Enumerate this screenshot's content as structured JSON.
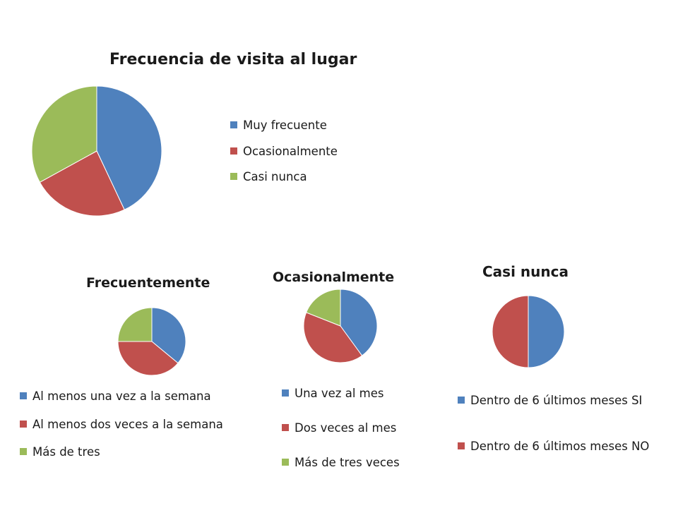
{
  "colors": {
    "blue": "#4F81BD",
    "red": "#C0504D",
    "green": "#9BBB59"
  },
  "chart_data": [
    {
      "type": "pie",
      "title": "Frecuencia de visita al lugar",
      "labels": [
        "Muy frecuente",
        "Ocasionalmente",
        "Casi nunca"
      ],
      "values": [
        43,
        24,
        33
      ],
      "colors": [
        "#4F81BD",
        "#C0504D",
        "#9BBB59"
      ],
      "legend": "right"
    },
    {
      "type": "pie",
      "title": "Frecuentemente",
      "labels": [
        "Al menos una vez a la semana",
        "Al menos dos veces a la semana",
        "Más de tres"
      ],
      "values": [
        36,
        39,
        25
      ],
      "colors": [
        "#4F81BD",
        "#C0504D",
        "#9BBB59"
      ],
      "legend": "bottom"
    },
    {
      "type": "pie",
      "title": "Ocasionalmente",
      "labels": [
        "Una vez al mes",
        "Dos veces al mes",
        "Más de tres veces"
      ],
      "values": [
        40,
        41,
        19
      ],
      "colors": [
        "#4F81BD",
        "#C0504D",
        "#9BBB59"
      ],
      "legend": "bottom"
    },
    {
      "type": "pie",
      "title": "Casi nunca",
      "labels": [
        "Dentro de 6 últimos meses SI",
        "Dentro de 6 últimos meses NO"
      ],
      "values": [
        50,
        50
      ],
      "colors": [
        "#4F81BD",
        "#C0504D"
      ],
      "legend": "bottom"
    }
  ]
}
